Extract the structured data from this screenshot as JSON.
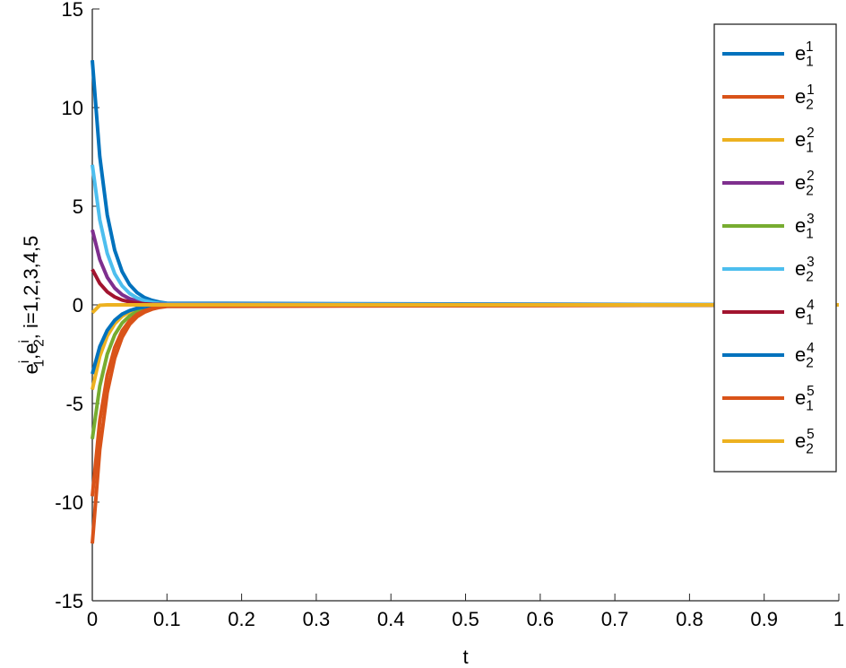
{
  "chart_data": {
    "type": "line",
    "xlabel": "t",
    "ylabel": "e^i_1,e^i_2, i=1,2,3,4,5",
    "x": [
      0,
      0.01,
      0.02,
      0.03,
      0.04,
      0.05,
      0.06,
      0.07,
      0.08,
      0.09,
      0.1,
      1
    ],
    "series": [
      {
        "name": "e_1^1",
        "color": "#0072BD",
        "values": [
          12.4,
          7.52,
          4.56,
          2.77,
          1.68,
          1.02,
          0.62,
          0.37,
          0.23,
          0.14,
          0.08,
          0
        ]
      },
      {
        "name": "e_2^1",
        "color": "#D95319",
        "values": [
          -12.1,
          -7.34,
          -4.45,
          -2.7,
          -1.64,
          -0.99,
          -0.6,
          -0.37,
          -0.22,
          -0.13,
          -0.08,
          0
        ]
      },
      {
        "name": "e_1^2",
        "color": "#EDB120",
        "values": [
          -4.3,
          -2.61,
          -1.58,
          -0.96,
          -0.58,
          -0.35,
          -0.21,
          -0.13,
          -0.08,
          -0.05,
          -0.03,
          0
        ]
      },
      {
        "name": "e_2^2",
        "color": "#7E2F8E",
        "values": [
          3.8,
          2.3,
          1.4,
          0.85,
          0.51,
          0.31,
          0.19,
          0.11,
          0.07,
          0.04,
          0.03,
          0
        ]
      },
      {
        "name": "e_1^3",
        "color": "#77AC30",
        "values": [
          -6.8,
          -4.12,
          -2.5,
          -1.52,
          -0.92,
          -0.56,
          -0.34,
          -0.21,
          -0.12,
          -0.08,
          -0.05,
          0
        ]
      },
      {
        "name": "e_2^3",
        "color": "#4DBEEE",
        "values": [
          7.1,
          4.31,
          2.61,
          1.58,
          0.96,
          0.58,
          0.35,
          0.21,
          0.13,
          0.08,
          0.05,
          0
        ]
      },
      {
        "name": "e_1^4",
        "color": "#A2142F",
        "values": [
          1.8,
          1.09,
          0.66,
          0.4,
          0.24,
          0.15,
          0.09,
          0.05,
          0.03,
          0.02,
          0.01,
          0
        ]
      },
      {
        "name": "e_2^4",
        "color": "#0072BD",
        "values": [
          -3.5,
          -2.12,
          -1.29,
          -0.78,
          -0.47,
          -0.29,
          -0.17,
          -0.11,
          -0.06,
          -0.04,
          -0.02,
          0
        ]
      },
      {
        "name": "e_1^5",
        "color": "#D95319",
        "values": [
          -9.7,
          -5.88,
          -3.57,
          -2.16,
          -1.31,
          -0.8,
          -0.48,
          -0.29,
          -0.18,
          -0.11,
          -0.06,
          0
        ]
      },
      {
        "name": "e_2^5",
        "color": "#EDB120",
        "values": [
          -0.4,
          -0.02,
          0,
          0,
          0,
          0,
          0,
          0,
          0,
          0,
          0,
          0
        ]
      }
    ],
    "xlim": [
      0,
      1
    ],
    "xticks": [
      0,
      0.1,
      0.2,
      0.3,
      0.4,
      0.5,
      0.6,
      0.7,
      0.8,
      0.9,
      1
    ],
    "ylim": [
      -15,
      15
    ],
    "yticks": [
      -15,
      -10,
      -5,
      0,
      5,
      10,
      15
    ],
    "legend": "northeast"
  }
}
